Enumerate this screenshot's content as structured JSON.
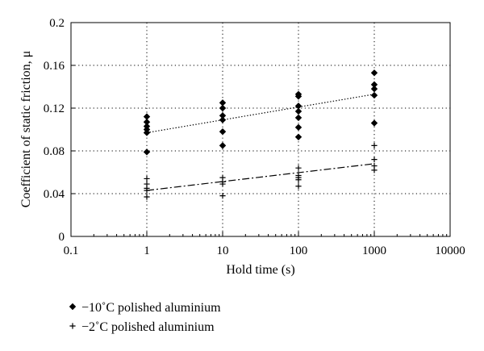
{
  "chart_data": {
    "type": "scatter",
    "xscale": "log",
    "xlabel": "Hold time (s)",
    "ylabel": "Coefficient of static friction, μ",
    "xlim": [
      0.1,
      10000
    ],
    "ylim": [
      0,
      0.2
    ],
    "xticks": [
      "0.1",
      "1",
      "10",
      "100",
      "1000",
      "10000"
    ],
    "yticks": [
      "0",
      "0.04",
      "0.08",
      "0.12",
      "0.16",
      "0.2"
    ],
    "grid": "dotted",
    "legend_position": "bottom-left",
    "series": [
      {
        "name": "−10˚C polished aluminium",
        "marker": "diamond",
        "x": [
          1,
          1,
          1,
          1,
          1,
          1,
          10,
          10,
          10,
          10,
          10,
          10,
          100,
          100,
          100,
          100,
          100,
          100,
          100,
          1000,
          1000,
          1000,
          1000,
          1000
        ],
        "y": [
          0.112,
          0.107,
          0.103,
          0.1,
          0.097,
          0.079,
          0.125,
          0.12,
          0.113,
          0.109,
          0.098,
          0.085,
          0.133,
          0.131,
          0.122,
          0.117,
          0.111,
          0.102,
          0.093,
          0.153,
          0.142,
          0.138,
          0.132,
          0.106
        ],
        "trendline": {
          "style": "dotted",
          "x": [
            1,
            1000
          ],
          "y": [
            0.097,
            0.133
          ]
        }
      },
      {
        "name": "−2˚C polished aluminium",
        "marker": "plus",
        "x": [
          1,
          1,
          1,
          1,
          1,
          10,
          10,
          10,
          10,
          100,
          100,
          100,
          100,
          100,
          1000,
          1000,
          1000,
          1000
        ],
        "y": [
          0.054,
          0.049,
          0.045,
          0.043,
          0.037,
          0.055,
          0.051,
          0.049,
          0.038,
          0.064,
          0.057,
          0.055,
          0.053,
          0.047,
          0.085,
          0.072,
          0.066,
          0.062
        ],
        "trendline": {
          "style": "dash-dot",
          "x": [
            1,
            1000
          ],
          "y": [
            0.043,
            0.068
          ]
        }
      }
    ]
  }
}
